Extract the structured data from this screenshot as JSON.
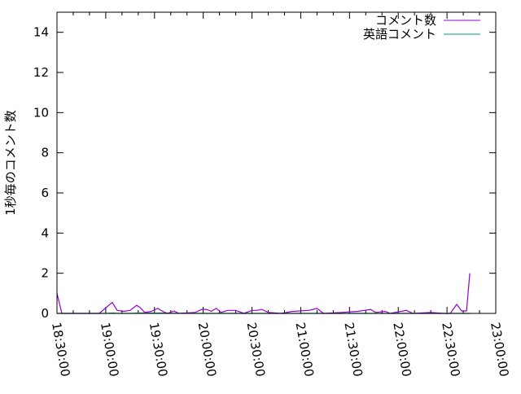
{
  "chart_data": {
    "type": "line",
    "title": "",
    "xlabel": "",
    "ylabel": "1秒毎のコメント数",
    "ylim": [
      0,
      15
    ],
    "xlim": [
      "18:30:00",
      "23:00:00"
    ],
    "yticks": [
      "0",
      "2",
      "4",
      "6",
      "8",
      "10",
      "12",
      "14"
    ],
    "xticks": [
      "18:30:00",
      "19:00:00",
      "19:30:00",
      "20:00:00",
      "20:30:00",
      "21:00:00",
      "21:30:00",
      "22:00:00",
      "22:30:00",
      "23:00:00"
    ],
    "grid": false,
    "legend_position": "top-right",
    "series": [
      {
        "name": "コメント数",
        "color": "#9400d3",
        "x": [
          "18:30",
          "18:33",
          "18:45",
          "18:56",
          "19:04",
          "19:07",
          "19:11",
          "19:15",
          "19:19",
          "19:21",
          "19:24",
          "19:28",
          "19:32",
          "19:35",
          "19:38",
          "19:42",
          "19:45",
          "19:55",
          "19:59",
          "20:02",
          "20:05",
          "20:08",
          "20:11",
          "20:15",
          "20:20",
          "20:25",
          "20:30",
          "20:33",
          "20:36",
          "20:40",
          "20:48",
          "20:55",
          "21:05",
          "21:10",
          "21:14",
          "21:25",
          "21:35",
          "21:43",
          "21:46",
          "21:52",
          "21:55",
          "22:05",
          "22:09",
          "22:20",
          "22:28",
          "22:32",
          "22:36",
          "22:39",
          "22:42",
          "22:44"
        ],
        "y": [
          1.0,
          0,
          0,
          0,
          0.55,
          0.15,
          0.1,
          0.15,
          0.4,
          0.3,
          0.05,
          0.1,
          0.25,
          0.1,
          0,
          0.12,
          0,
          0.05,
          0.2,
          0.2,
          0.1,
          0.25,
          0.05,
          0.15,
          0.15,
          0,
          0.15,
          0.15,
          0.2,
          0.05,
          0,
          0.1,
          0.15,
          0.25,
          0,
          0.05,
          0.1,
          0.2,
          0.05,
          0.1,
          0,
          0.15,
          0,
          0.05,
          0,
          0,
          0.45,
          0.12,
          0.12,
          2.0
        ]
      },
      {
        "name": "英語コメント",
        "color": "#009e73",
        "x": [
          "18:30",
          "19:00",
          "19:04",
          "19:08",
          "19:16",
          "19:20",
          "20:00",
          "21:00",
          "22:00",
          "22:44"
        ],
        "y": [
          0,
          0,
          0.02,
          0,
          0,
          0.02,
          0,
          0,
          0,
          0
        ]
      }
    ]
  }
}
